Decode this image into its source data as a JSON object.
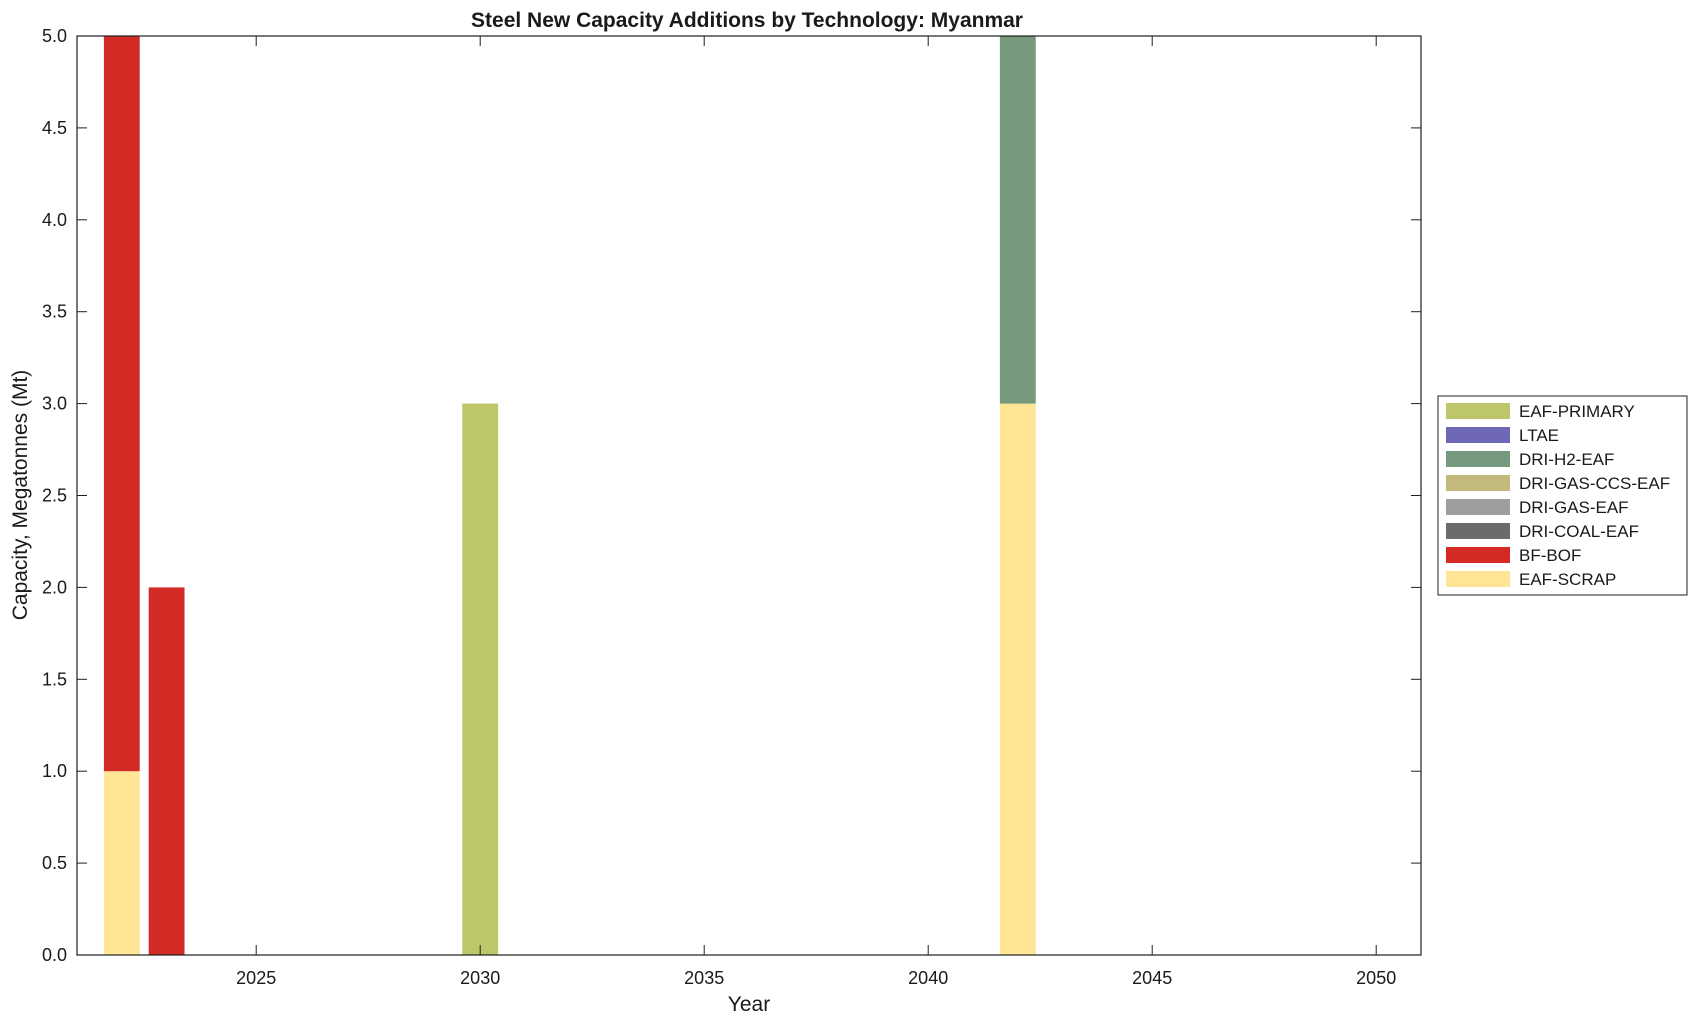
{
  "chart_data": {
    "type": "bar",
    "stacked": true,
    "title": "Steel New Capacity Additions by Technology: Myanmar",
    "xlabel": "Year",
    "ylabel": "Capacity, Megatonnes (Mt)",
    "xlim": [
      2021,
      2051
    ],
    "ylim": [
      0,
      5
    ],
    "x_ticks": [
      2025,
      2030,
      2035,
      2040,
      2045,
      2050
    ],
    "y_ticks": [
      0,
      0.5,
      1,
      1.5,
      2,
      2.5,
      3,
      3.5,
      4,
      4.5,
      5
    ],
    "y_tick_labels": [
      "0.0",
      "0.5",
      "1.0",
      "1.5",
      "2.0",
      "2.5",
      "3.0",
      "3.5",
      "4.0",
      "4.5",
      "5.0"
    ],
    "grid": false,
    "legend_position": "right",
    "x": [
      2022,
      2023,
      2030,
      2042
    ],
    "series": [
      {
        "name": "EAF-PRIMARY",
        "color": "#bdc76a",
        "values": [
          0,
          0,
          3,
          0
        ]
      },
      {
        "name": "LTAE",
        "color": "#6e68b6",
        "values": [
          0,
          0,
          0,
          0
        ]
      },
      {
        "name": "DRI-H2-EAF",
        "color": "#76987c",
        "values": [
          0,
          0,
          0,
          2
        ]
      },
      {
        "name": "DRI-GAS-CCS-EAF",
        "color": "#c2ba7c",
        "values": [
          0,
          0,
          0,
          0
        ]
      },
      {
        "name": "DRI-GAS-EAF",
        "color": "#9e9e9e",
        "values": [
          0,
          0,
          0,
          0
        ]
      },
      {
        "name": "DRI-COAL-EAF",
        "color": "#6b6b6b",
        "values": [
          0,
          0,
          0,
          0
        ]
      },
      {
        "name": "BF-BOF",
        "color": "#d22b25",
        "values": [
          4,
          2,
          0,
          0
        ]
      },
      {
        "name": "EAF-SCRAP",
        "color": "#ffe594",
        "values": [
          1,
          0,
          0,
          3
        ]
      }
    ],
    "stack_order_bottom_to_top": [
      "EAF-SCRAP",
      "BF-BOF",
      "DRI-COAL-EAF",
      "DRI-GAS-EAF",
      "DRI-GAS-CCS-EAF",
      "DRI-H2-EAF",
      "LTAE",
      "EAF-PRIMARY"
    ]
  }
}
